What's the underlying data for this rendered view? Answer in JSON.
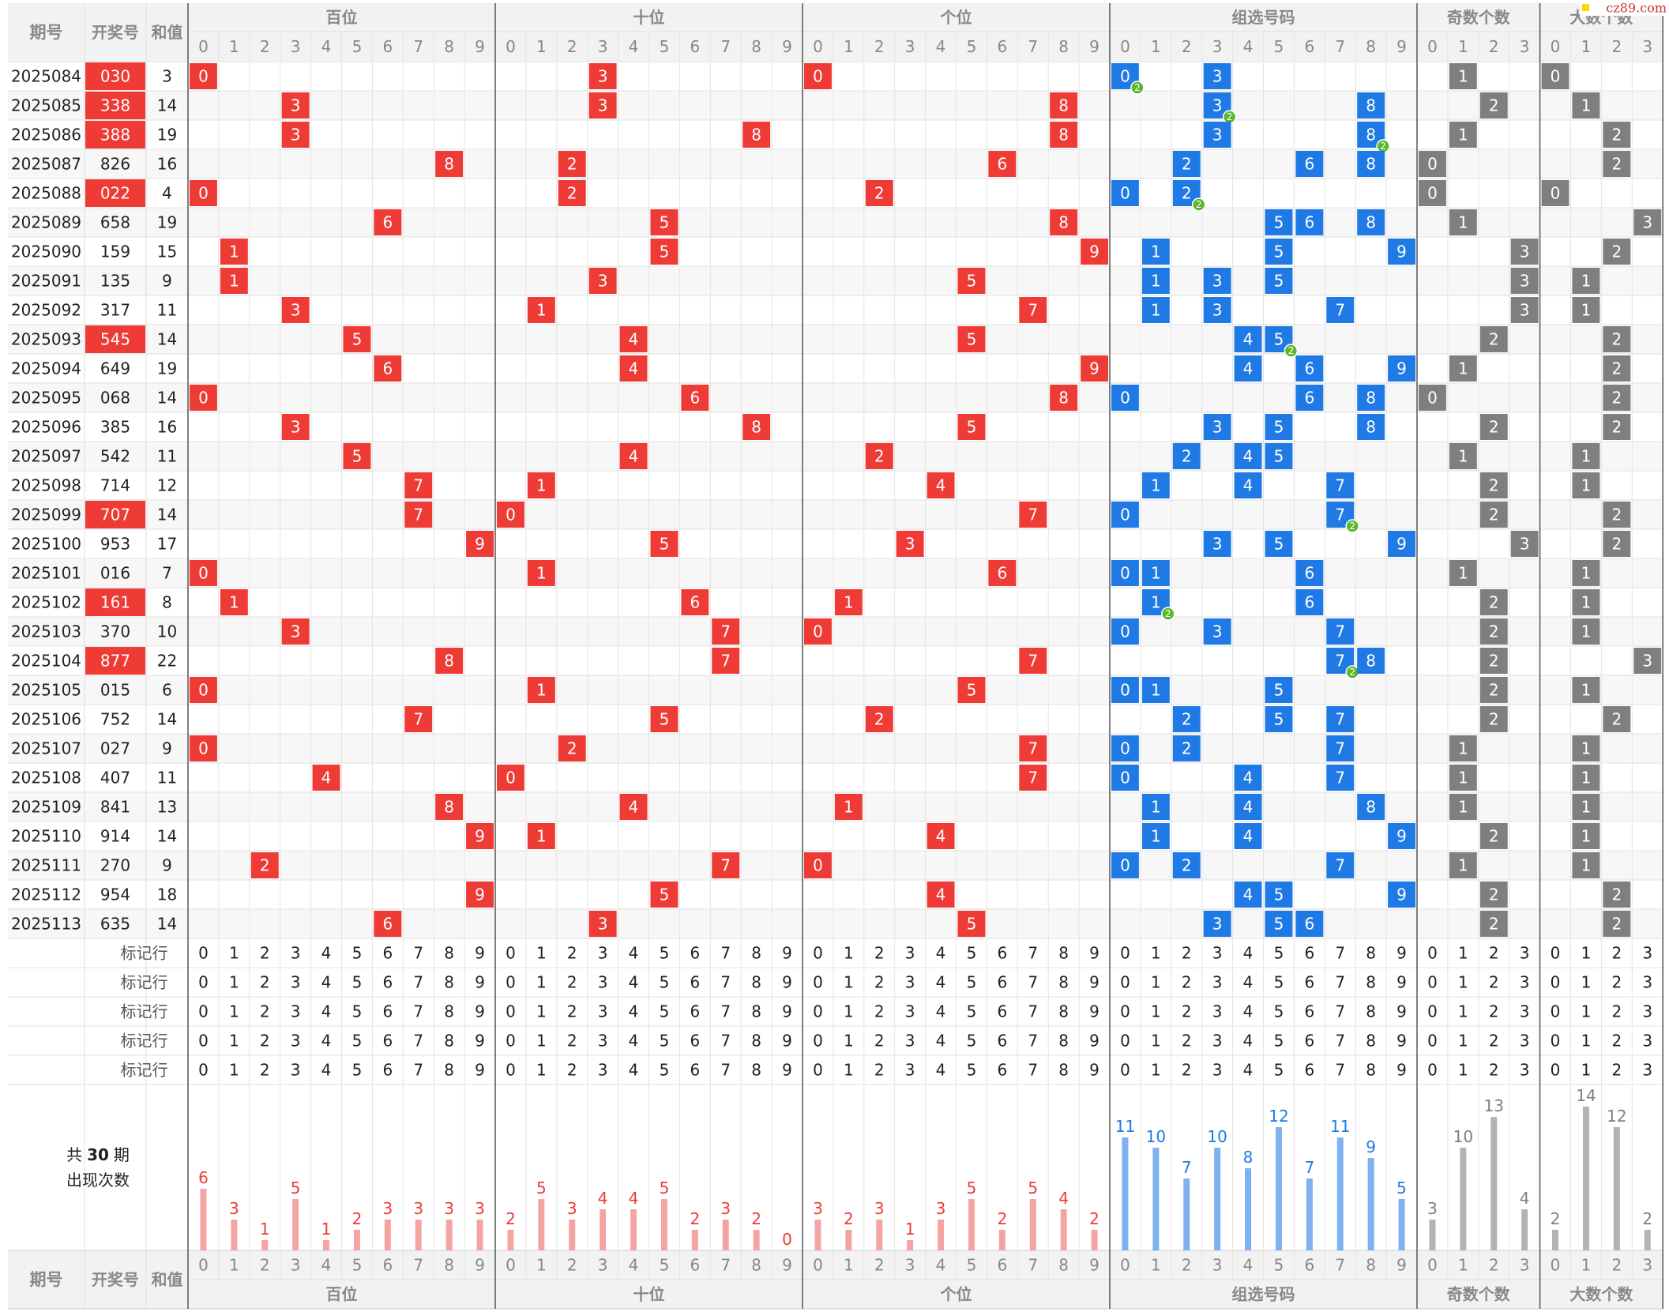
{
  "watermark": "cz89.com",
  "header": {
    "period": "期号",
    "number": "开奖号",
    "sum": "和值"
  },
  "groups": [
    {
      "name": "百位",
      "kind": "position",
      "color": "#ee3b36",
      "light": "#f4a5a3",
      "digits": [
        0,
        1,
        2,
        3,
        4,
        5,
        6,
        7,
        8,
        9
      ],
      "counts": [
        6,
        3,
        1,
        5,
        1,
        2,
        3,
        3,
        3,
        3
      ]
    },
    {
      "name": "十位",
      "kind": "position",
      "color": "#ee3b36",
      "light": "#f4a5a3",
      "digits": [
        0,
        1,
        2,
        3,
        4,
        5,
        6,
        7,
        8,
        9
      ],
      "counts": [
        2,
        5,
        3,
        4,
        4,
        5,
        2,
        3,
        2,
        0
      ]
    },
    {
      "name": "个位",
      "kind": "position",
      "color": "#ee3b36",
      "light": "#f4a5a3",
      "digits": [
        0,
        1,
        2,
        3,
        4,
        5,
        6,
        7,
        8,
        9
      ],
      "counts": [
        3,
        2,
        3,
        1,
        3,
        5,
        2,
        5,
        4,
        2
      ]
    },
    {
      "name": "组选号码",
      "kind": "group",
      "color": "#1f7ae6",
      "light": "#7fb0ef",
      "digits": [
        0,
        1,
        2,
        3,
        4,
        5,
        6,
        7,
        8,
        9
      ],
      "counts": [
        11,
        10,
        7,
        10,
        8,
        12,
        7,
        11,
        9,
        5
      ]
    },
    {
      "name": "奇数个数",
      "kind": "odd",
      "color": "#7f7f7f",
      "light": "#b3b3b3",
      "digits": [
        0,
        1,
        2,
        3
      ],
      "counts": [
        3,
        10,
        13,
        4
      ]
    },
    {
      "name": "大数个数",
      "kind": "big",
      "color": "#7f7f7f",
      "light": "#b3b3b3",
      "digits": [
        0,
        1,
        2,
        3
      ],
      "counts": [
        2,
        14,
        12,
        2
      ]
    }
  ],
  "rows": [
    {
      "period": "2025084",
      "number": "030",
      "sum": 3
    },
    {
      "period": "2025085",
      "number": "338",
      "sum": 14
    },
    {
      "period": "2025086",
      "number": "388",
      "sum": 19
    },
    {
      "period": "2025087",
      "number": "826",
      "sum": 16
    },
    {
      "period": "2025088",
      "number": "022",
      "sum": 4
    },
    {
      "period": "2025089",
      "number": "658",
      "sum": 19
    },
    {
      "period": "2025090",
      "number": "159",
      "sum": 15
    },
    {
      "period": "2025091",
      "number": "135",
      "sum": 9
    },
    {
      "period": "2025092",
      "number": "317",
      "sum": 11
    },
    {
      "period": "2025093",
      "number": "545",
      "sum": 14
    },
    {
      "period": "2025094",
      "number": "649",
      "sum": 19
    },
    {
      "period": "2025095",
      "number": "068",
      "sum": 14
    },
    {
      "period": "2025096",
      "number": "385",
      "sum": 16
    },
    {
      "period": "2025097",
      "number": "542",
      "sum": 11
    },
    {
      "period": "2025098",
      "number": "714",
      "sum": 12
    },
    {
      "period": "2025099",
      "number": "707",
      "sum": 14
    },
    {
      "period": "2025100",
      "number": "953",
      "sum": 17
    },
    {
      "period": "2025101",
      "number": "016",
      "sum": 7
    },
    {
      "period": "2025102",
      "number": "161",
      "sum": 8
    },
    {
      "period": "2025103",
      "number": "370",
      "sum": 10
    },
    {
      "period": "2025104",
      "number": "877",
      "sum": 22
    },
    {
      "period": "2025105",
      "number": "015",
      "sum": 6
    },
    {
      "period": "2025106",
      "number": "752",
      "sum": 14
    },
    {
      "period": "2025107",
      "number": "027",
      "sum": 9
    },
    {
      "period": "2025108",
      "number": "407",
      "sum": 11
    },
    {
      "period": "2025109",
      "number": "841",
      "sum": 13
    },
    {
      "period": "2025110",
      "number": "914",
      "sum": 14
    },
    {
      "period": "2025111",
      "number": "270",
      "sum": 9
    },
    {
      "period": "2025112",
      "number": "954",
      "sum": 18
    },
    {
      "period": "2025113",
      "number": "635",
      "sum": 14
    }
  ],
  "repeat_badge": "2",
  "marker_rows": [
    "标记行",
    "标记行",
    "标记行",
    "标记行",
    "标记行"
  ],
  "stats": {
    "prefix": "共",
    "periods": 30,
    "suffix": "期",
    "caption": "出现次数"
  }
}
